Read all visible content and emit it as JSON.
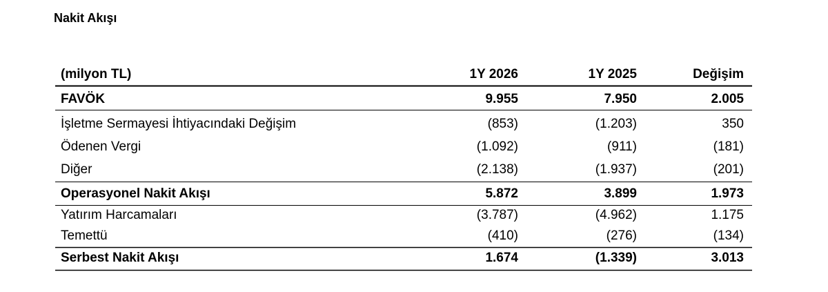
{
  "title": "Nakit Akışı",
  "table": {
    "header": [
      "(milyon TL)",
      "1Y 2026",
      "1Y 2025",
      "Değişim"
    ],
    "rows": [
      [
        "FAVÖK",
        "9.955",
        "7.950",
        "2.005"
      ],
      [
        "İşletme Sermayesi İhtiyacındaki Değişim",
        "(853)",
        "(1.203)",
        "350"
      ],
      [
        "Ödenen Vergi",
        "(1.092)",
        "(911)",
        "(181)"
      ],
      [
        "Diğer",
        "(2.138)",
        "(1.937)",
        "(201)"
      ],
      [
        "Operasyonel Nakit Akışı",
        "5.872",
        "3.899",
        "1.973"
      ],
      [
        "Yatırım Harcamaları",
        "(3.787)",
        "(4.962)",
        "1.175"
      ],
      [
        "Temettü",
        "(410)",
        "(276)",
        "(134)"
      ],
      [
        "Serbest Nakit Akışı",
        "1.674",
        "(1.339)",
        "3.013"
      ]
    ]
  }
}
